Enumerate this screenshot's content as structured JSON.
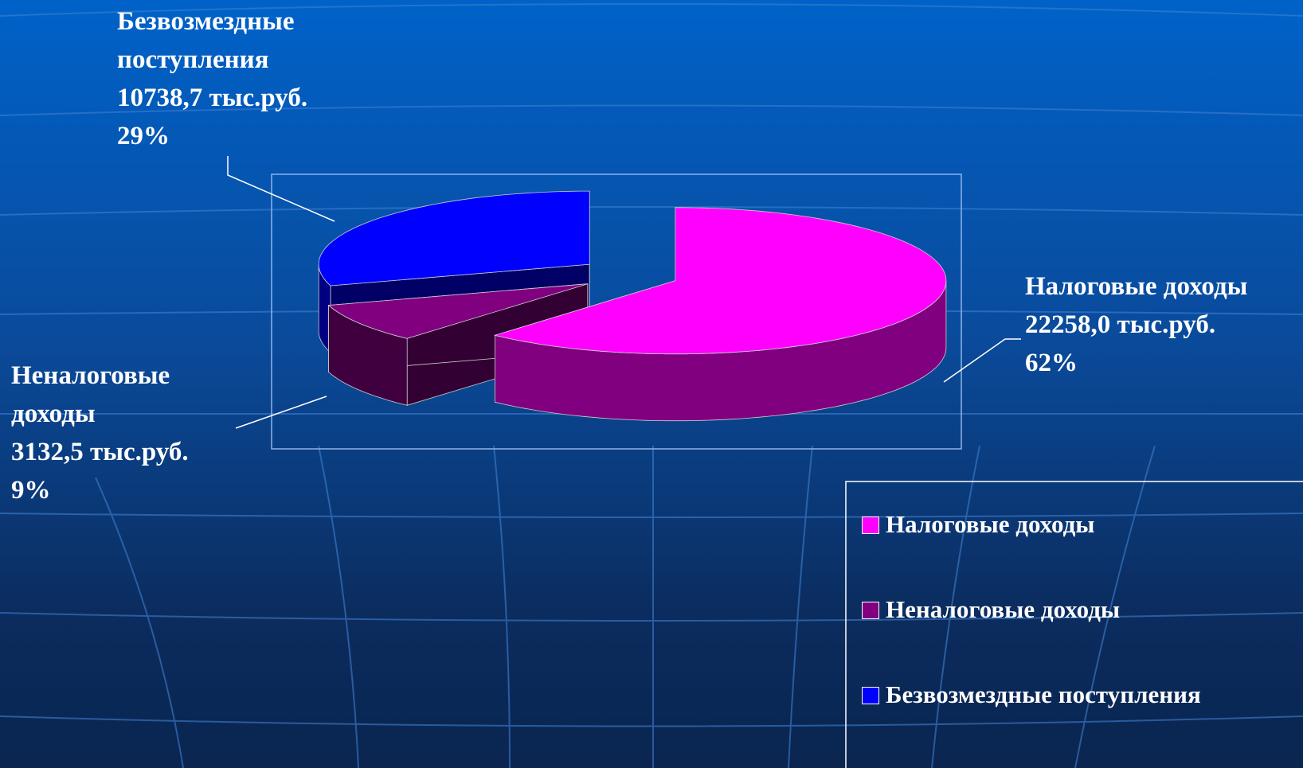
{
  "chart_data": {
    "type": "pie",
    "categories": [
      "Налоговые доходы",
      "Неналоговые доходы",
      "Безвозмездные поступления"
    ],
    "values": [
      22258.0,
      3132.5,
      10738.7
    ],
    "value_labels": [
      "22258,0 тыс.руб.",
      "3132,5 тыс.руб.",
      "10738,7 тыс.руб."
    ],
    "percents": [
      62,
      9,
      29
    ],
    "percent_labels": [
      "62%",
      "9%",
      "29%"
    ],
    "colors": [
      "#ff00ff",
      "#800080",
      "#0000ff"
    ]
  }
}
